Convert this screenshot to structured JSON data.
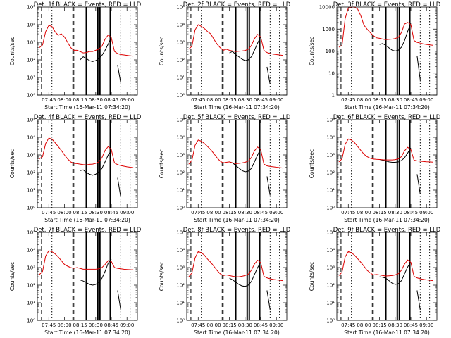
{
  "chart_data": {
    "type": "line",
    "y_scale": "log",
    "colors": {
      "events": "#000000",
      "lld": "#dd0000"
    },
    "x_tick_labels": [
      "07:45",
      "08:00",
      "08:15",
      "08:30",
      "08:45",
      "09:00"
    ],
    "xlabel": "Start Time (16-Mar-11 07:34:20)",
    "ylabel": "Counts/sec",
    "time_points": [
      "07:36",
      "07:39",
      "07:42",
      "07:45",
      "07:48",
      "07:51",
      "07:54",
      "07:57",
      "08:00",
      "08:03",
      "08:06",
      "08:09",
      "08:12",
      "08:15",
      "08:18",
      "08:21",
      "08:24",
      "08:27",
      "08:30",
      "08:33",
      "08:36",
      "08:39",
      "08:42",
      "08:45",
      "08:48",
      "08:51",
      "08:54",
      "08:57",
      "09:00",
      "09:03",
      "09:06"
    ],
    "marker_lines": [
      {
        "style": "dashed",
        "time": "07:38"
      },
      {
        "style": "dotted",
        "time": "07:48"
      },
      {
        "style": "dashed",
        "time": "08:08"
      },
      {
        "style": "dashed",
        "time": "08:09"
      },
      {
        "style": "solid",
        "time": "08:21"
      },
      {
        "style": "solid",
        "time": "08:32"
      },
      {
        "style": "solid",
        "time": "08:34"
      },
      {
        "style": "solid",
        "time": "08:44"
      },
      {
        "style": "dotted",
        "time": "08:54"
      },
      {
        "style": "dotted",
        "time": "09:03"
      }
    ],
    "panels": [
      {
        "title": "Det. 1f BLACK = Events, RED = LLD",
        "ylim": [
          1,
          100000
        ],
        "yticks": [
          "10⁰",
          "10¹",
          "10²",
          "10³",
          "10⁴",
          "10⁵"
        ],
        "series": [
          {
            "values": [
              null,
              null,
              null,
              null,
              null,
              null,
              null,
              null,
              null,
              null,
              null,
              null,
              null,
              100,
              150,
              120,
              90,
              80,
              90,
              120,
              180,
              350,
              800,
              2000,
              null,
              50,
              5,
              null,
              null,
              null,
              null
            ]
          },
          {
            "values": [
              500,
              700,
              4000,
              9000,
              8000,
              4000,
              2500,
              3000,
              2000,
              1000,
              500,
              350,
              350,
              300,
              250,
              260,
              300,
              300,
              350,
              400,
              600,
              1500,
              2600,
              1800,
              300,
              230,
              200,
              190,
              180,
              170,
              165
            ]
          }
        ]
      },
      {
        "title": "Det. 2f BLACK = Events, RED = LLD",
        "ylim": [
          1,
          100000
        ],
        "yticks": [
          "10⁰",
          "10¹",
          "10²",
          "10³",
          "10⁴",
          "10⁵"
        ],
        "series": [
          {
            "values": [
              null,
              null,
              null,
              null,
              null,
              null,
              null,
              null,
              null,
              null,
              null,
              null,
              null,
              250,
              300,
              200,
              150,
              110,
              90,
              100,
              150,
              350,
              900,
              2000,
              null,
              40,
              4,
              null,
              null,
              null,
              null
            ]
          },
          {
            "values": [
              400,
              600,
              5000,
              10000,
              8000,
              6000,
              4000,
              3000,
              1500,
              800,
              500,
              350,
              400,
              350,
              320,
              300,
              310,
              320,
              340,
              400,
              650,
              1600,
              2800,
              2000,
              350,
              260,
              230,
              210,
              200,
              190,
              180
            ]
          }
        ]
      },
      {
        "title": "Det. 3f BLACK = Events, RED = LLD",
        "ylim": [
          1,
          10000
        ],
        "yticks": [
          "1",
          "10",
          "100",
          "1000",
          "10000"
        ],
        "series": [
          {
            "values": [
              null,
              null,
              null,
              null,
              null,
              null,
              null,
              null,
              null,
              null,
              null,
              null,
              null,
              200,
              220,
              180,
              140,
              110,
              100,
              110,
              150,
              300,
              800,
              1800,
              null,
              60,
              5,
              null,
              null,
              null,
              null
            ]
          },
          {
            "values": [
              150,
              180,
              3000,
              9000,
              10000,
              10000,
              8000,
              4000,
              1500,
              1000,
              700,
              500,
              400,
              380,
              350,
              330,
              340,
              350,
              370,
              420,
              700,
              1700,
              2000,
              1600,
              300,
              250,
              230,
              210,
              200,
              190,
              185
            ]
          }
        ]
      },
      {
        "title": "Det. 4f BLACK = Events, RED = LLD",
        "ylim": [
          1,
          100000
        ],
        "yticks": [
          "10⁰",
          "10¹",
          "10²",
          "10³",
          "10⁴",
          "10⁵"
        ],
        "series": [
          {
            "values": [
              null,
              null,
              null,
              null,
              null,
              null,
              null,
              null,
              null,
              null,
              null,
              null,
              null,
              130,
              140,
              100,
              80,
              70,
              80,
              110,
              170,
              400,
              1000,
              1800,
              null,
              50,
              4,
              null,
              null,
              null,
              null
            ]
          },
          {
            "values": [
              600,
              800,
              4500,
              9000,
              8000,
              5000,
              3000,
              1800,
              1000,
              600,
              400,
              330,
              320,
              300,
              280,
              270,
              290,
              300,
              330,
              400,
              700,
              1800,
              3000,
              2000,
              350,
              280,
              250,
              230,
              210,
              200,
              190
            ]
          }
        ]
      },
      {
        "title": "Det. 5f BLACK = Events, RED = LLD",
        "ylim": [
          1,
          100000
        ],
        "yticks": [
          "10⁰",
          "10¹",
          "10²",
          "10³",
          "10⁴",
          "10⁵"
        ],
        "series": [
          {
            "values": [
              null,
              null,
              null,
              null,
              null,
              null,
              null,
              null,
              null,
              null,
              null,
              null,
              null,
              400,
              350,
              250,
              180,
              130,
              110,
              120,
              170,
              400,
              1000,
              2200,
              null,
              60,
              5,
              null,
              null,
              null,
              null
            ]
          },
          {
            "values": [
              300,
              500,
              3500,
              7000,
              6000,
              4500,
              3000,
              2000,
              1200,
              700,
              450,
              350,
              380,
              400,
              350,
              320,
              330,
              350,
              380,
              450,
              700,
              1700,
              2800,
              2000,
              300,
              240,
              220,
              210,
              200,
              190,
              180
            ]
          }
        ]
      },
      {
        "title": "Det. 6f BLACK = Events, RED = LLD",
        "ylim": [
          1,
          100000
        ],
        "yticks": [
          "10⁰",
          "10¹",
          "10²",
          "10³",
          "10⁴",
          "10⁵"
        ],
        "series": [
          {
            "values": [
              null,
              null,
              null,
              null,
              null,
              null,
              null,
              null,
              null,
              null,
              null,
              null,
              null,
              550,
              500,
              450,
              400,
              380,
              380,
              400,
              480,
              700,
              1300,
              2500,
              null,
              80,
              6,
              null,
              null,
              null,
              null
            ]
          },
          {
            "values": [
              400,
              600,
              4000,
              8000,
              7000,
              5000,
              3000,
              1800,
              1100,
              800,
              650,
              580,
              560,
              550,
              530,
              520,
              520,
              520,
              540,
              600,
              800,
              1700,
              2700,
              2000,
              500,
              460,
              440,
              420,
              410,
              400,
              390
            ]
          }
        ]
      },
      {
        "title": "Det. 7f BLACK = Events, RED = LLD",
        "ylim": [
          1,
          100000
        ],
        "yticks": [
          "10⁰",
          "10¹",
          "10²",
          "10³",
          "10⁴",
          "10⁵"
        ],
        "series": [
          {
            "values": [
              null,
              null,
              null,
              null,
              null,
              null,
              null,
              null,
              null,
              null,
              null,
              null,
              null,
              200,
              170,
              140,
              110,
              100,
              110,
              150,
              250,
              600,
              1800,
              3000,
              null,
              50,
              4,
              null,
              null,
              null,
              null
            ]
          },
          {
            "values": [
              400,
              600,
              4500,
              9000,
              8000,
              6000,
              4000,
              2500,
              1500,
              1200,
              1000,
              900,
              1000,
              900,
              800,
              800,
              800,
              800,
              800,
              850,
              1000,
              1500,
              2500,
              2200,
              1000,
              900,
              850,
              800,
              780,
              760,
              750
            ]
          }
        ]
      },
      {
        "title": "Det. 8f BLACK = Events, RED = LLD",
        "ylim": [
          1,
          100000
        ],
        "yticks": [
          "10⁰",
          "10¹",
          "10²",
          "10³",
          "10⁴",
          "10⁵"
        ],
        "series": [
          {
            "values": [
              null,
              null,
              null,
              null,
              null,
              null,
              null,
              null,
              null,
              null,
              null,
              null,
              null,
              250,
              200,
              150,
              110,
              90,
              85,
              100,
              160,
              400,
              1000,
              2000,
              null,
              50,
              4,
              null,
              null,
              null,
              null
            ]
          },
          {
            "values": [
              300,
              500,
              3500,
              8000,
              7000,
              5000,
              3000,
              2000,
              1200,
              700,
              450,
              350,
              380,
              350,
              320,
              300,
              300,
              320,
              350,
              420,
              700,
              1600,
              2600,
              1900,
              320,
              260,
              230,
              210,
              200,
              190,
              180
            ]
          }
        ]
      },
      {
        "title": "Det. 9f BLACK = Events, RED = LLD",
        "ylim": [
          1,
          100000
        ],
        "yticks": [
          "10⁰",
          "10¹",
          "10²",
          "10³",
          "10⁴",
          "10⁵"
        ],
        "series": [
          {
            "values": [
              null,
              null,
              null,
              null,
              null,
              null,
              null,
              null,
              null,
              null,
              null,
              null,
              null,
              300,
              280,
              250,
              180,
              130,
              110,
              120,
              180,
              450,
              1100,
              2000,
              null,
              50,
              4,
              null,
              null,
              null,
              null
            ]
          },
          {
            "values": [
              350,
              550,
              4000,
              8000,
              7000,
              5000,
              3200,
              2000,
              1200,
              700,
              500,
              380,
              400,
              380,
              350,
              330,
              340,
              350,
              380,
              450,
              700,
              1600,
              2700,
              2000,
              320,
              260,
              230,
              210,
              200,
              190,
              180
            ]
          }
        ]
      }
    ]
  }
}
